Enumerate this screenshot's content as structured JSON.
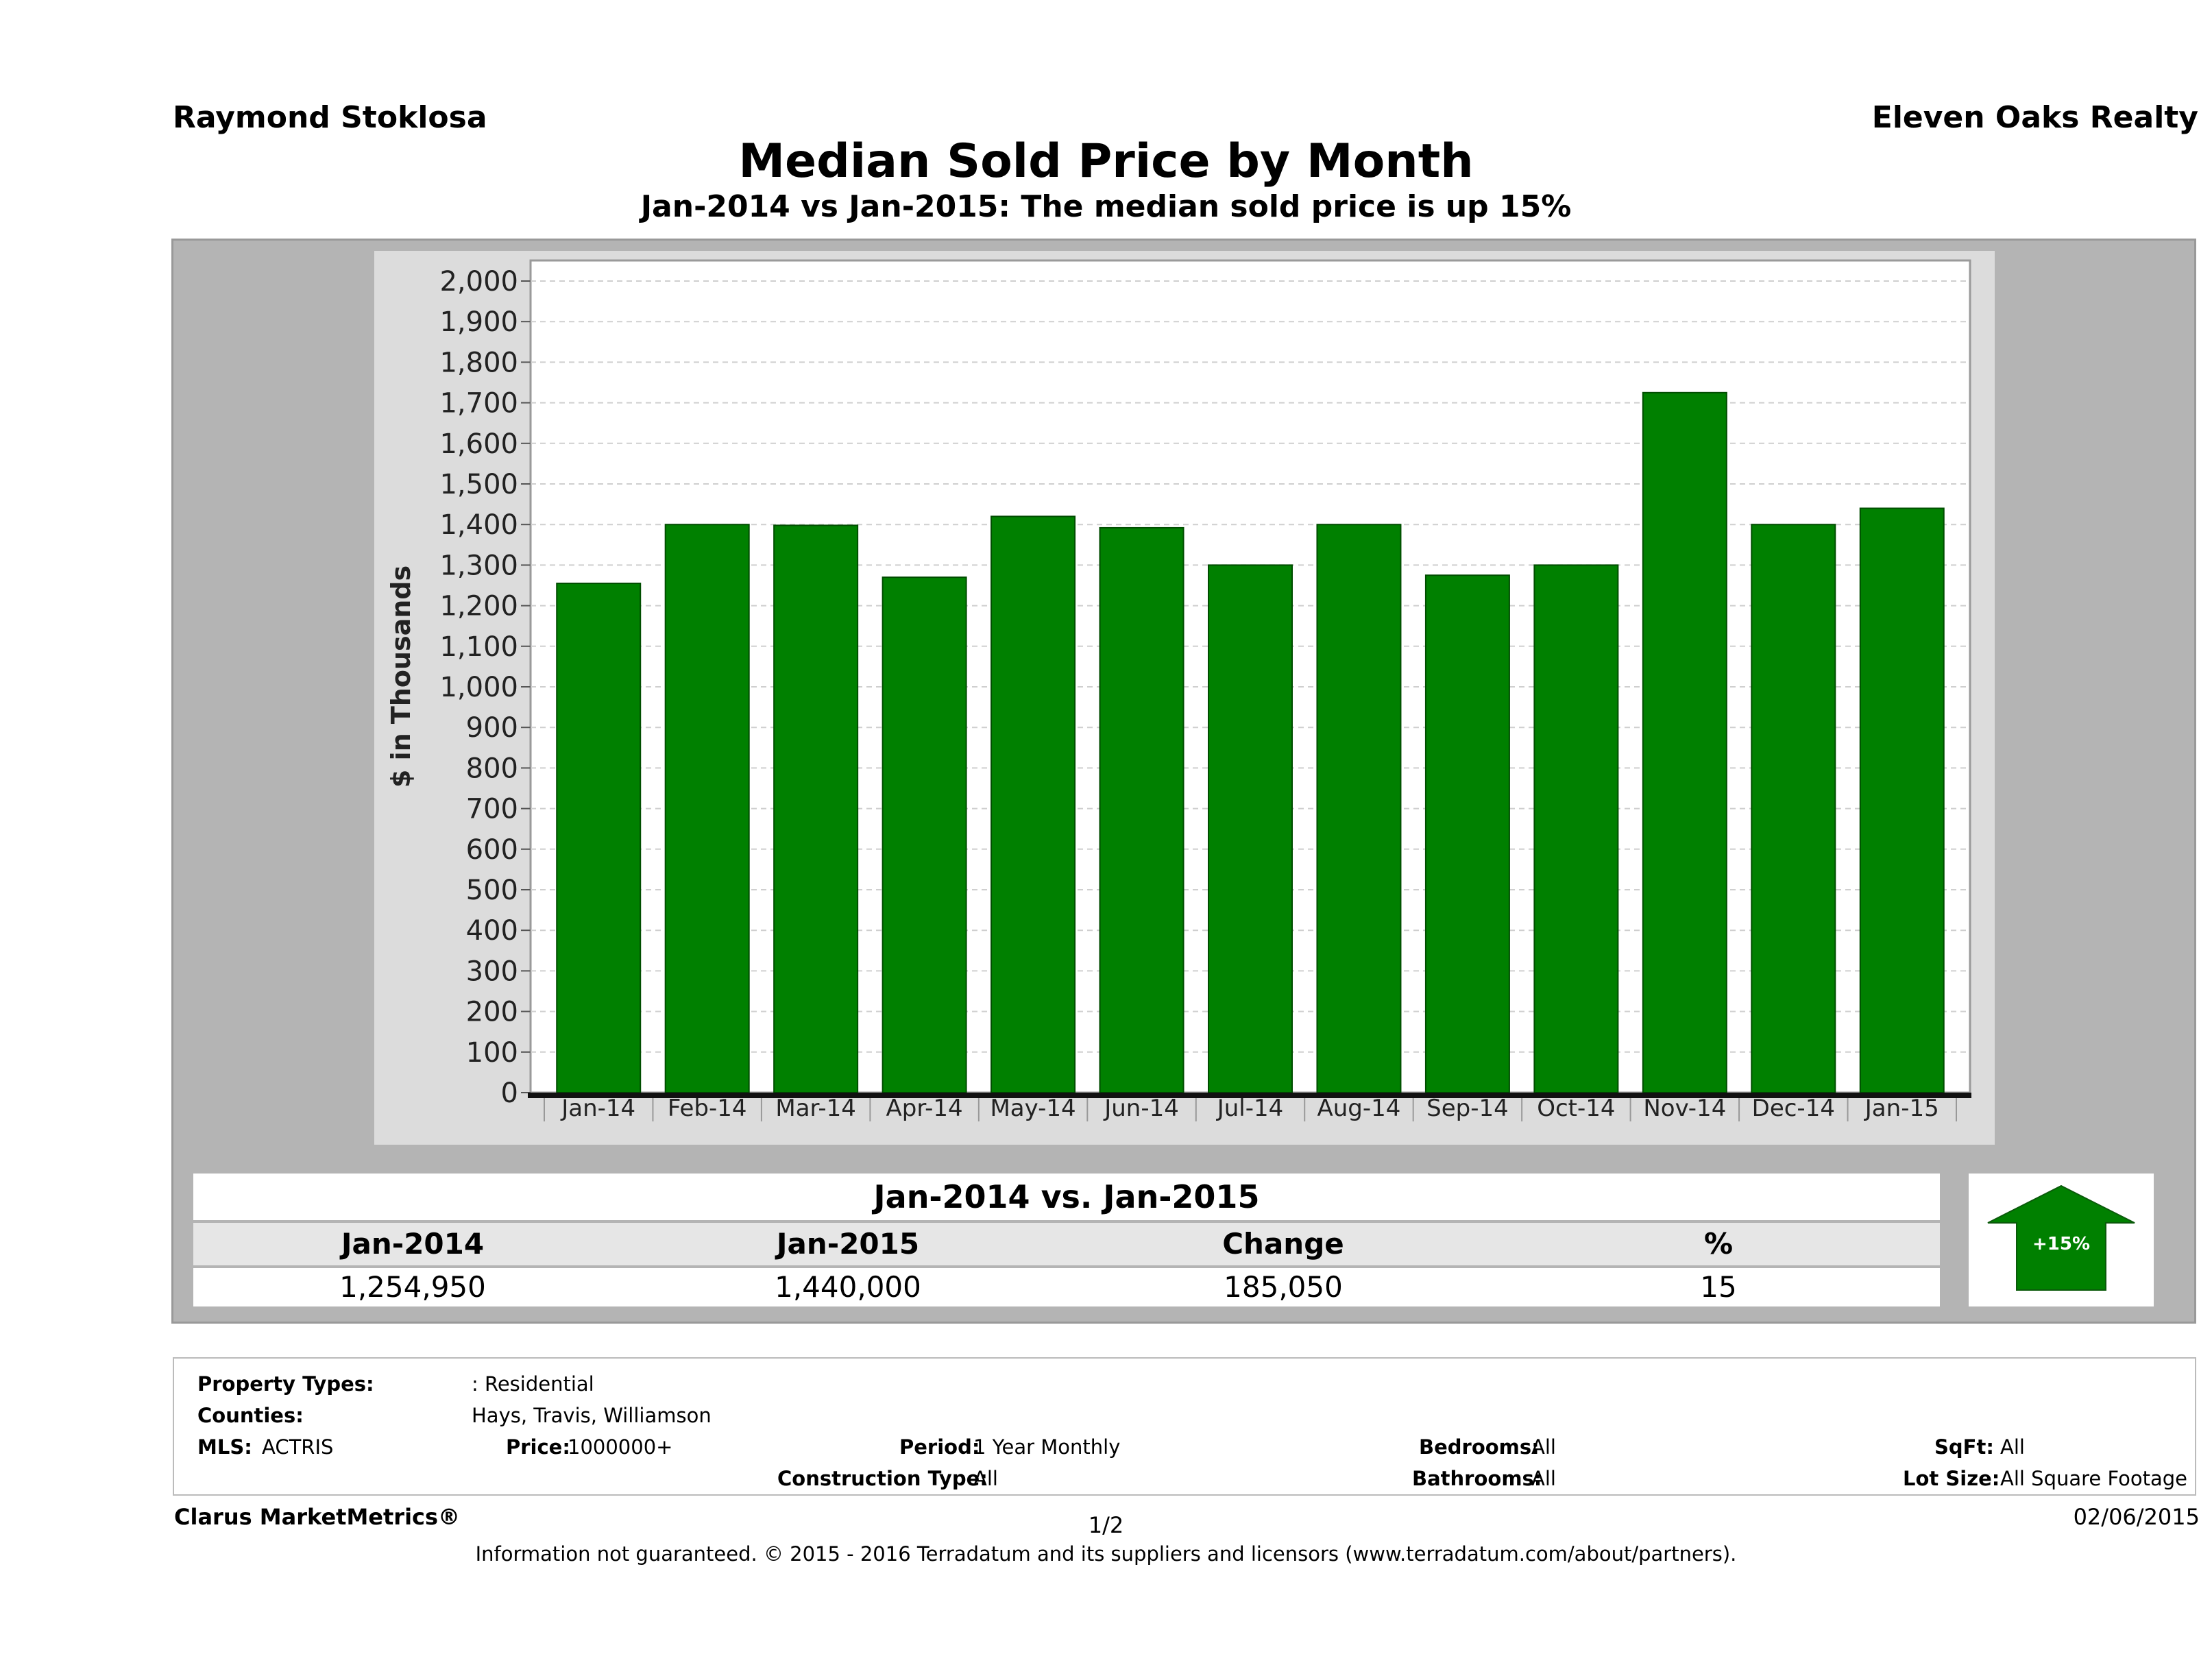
{
  "header": {
    "agent_name": "Raymond Stoklosa",
    "company": "Eleven Oaks Realty",
    "title": "Median Sold Price by Month",
    "subtitle": "Jan-2014 vs Jan-2015: The median sold price is up 15%"
  },
  "chart_data": {
    "type": "bar",
    "title": "Median Sold Price by Month",
    "ylabel": "$ in Thousands",
    "xlabel": "",
    "ylim": [
      0,
      2000
    ],
    "ytick_step": 100,
    "grid": true,
    "categories": [
      "Jan-14",
      "Feb-14",
      "Mar-14",
      "Apr-14",
      "May-14",
      "Jun-14",
      "Jul-14",
      "Aug-14",
      "Sep-14",
      "Oct-14",
      "Nov-14",
      "Dec-14",
      "Jan-15"
    ],
    "values": [
      1255,
      1400,
      1398,
      1270,
      1420,
      1392,
      1300,
      1400,
      1275,
      1300,
      1725,
      1400,
      1440
    ],
    "bar_color": "#008000"
  },
  "summary": {
    "heading": "Jan-2014 vs. Jan-2015",
    "columns": [
      {
        "label": "Jan-2014",
        "value": "1,254,950"
      },
      {
        "label": "Jan-2015",
        "value": "1,440,000"
      },
      {
        "label": "Change",
        "value": "185,050"
      },
      {
        "label": "%",
        "value": "15"
      }
    ],
    "badge": "+15%",
    "badge_color": "#008000"
  },
  "details": {
    "property_types_label": "Property Types:",
    "property_types_value": ": Residential",
    "counties_label": "Counties:",
    "counties_value": "Hays, Travis, Williamson",
    "mls_label": "MLS:",
    "mls_value": "ACTRIS",
    "price_label": "Price:",
    "price_value": "1000000+",
    "period_label": "Period:",
    "period_value": "1 Year Monthly",
    "construction_label": "Construction Type:",
    "construction_value": "All",
    "bedrooms_label": "Bedrooms:",
    "bedrooms_value": "All",
    "bathrooms_label": "Bathrooms:",
    "bathrooms_value": "All",
    "sqft_label": "SqFt:",
    "sqft_value": "All",
    "lot_label": "Lot Size:",
    "lot_value": "All Square Footage"
  },
  "footer": {
    "brand": "Clarus MarketMetrics®",
    "page": "1/2",
    "date": "02/06/2015",
    "disclaimer": "Information not guaranteed. © 2015 - 2016 Terradatum and its suppliers and licensors (www.terradatum.com/about/partners)."
  }
}
